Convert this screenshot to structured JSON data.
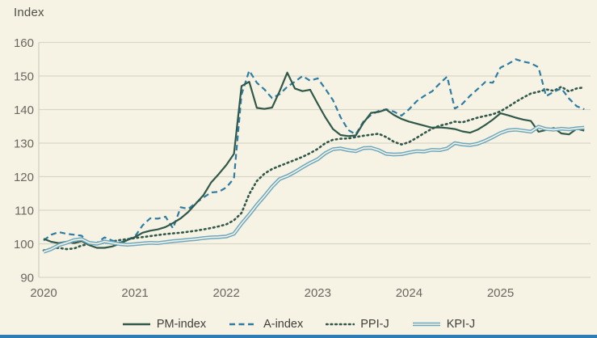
{
  "page": {
    "background": "#f6f3e5",
    "bottom_bar_color": "#2e7cb5",
    "grid_color": "#d9d6c7",
    "axis_color": "#cfccbd",
    "tick_text_color": "#6a675f",
    "label_text_color": "#504e47",
    "legend_text_color": "#3f3e39"
  },
  "chart": {
    "y_axis_title": "Index",
    "y_ticks": [
      90,
      100,
      110,
      120,
      130,
      140,
      150,
      160
    ],
    "x_ticks": [
      "2020",
      "2021",
      "2022",
      "2023",
      "2024",
      "2025"
    ]
  },
  "chart_data": {
    "type": "line",
    "title": "",
    "ylabel": "Index",
    "xlabel": "",
    "ylim": [
      90,
      160
    ],
    "x_range": [
      "2020-01",
      "2025-12"
    ],
    "x_unit": "month",
    "grid": "horizontal",
    "legend_position": "bottom",
    "series": [
      {
        "name": "PPI-J",
        "style": "dotted",
        "color": "#31584a",
        "values": [
          98.0,
          98.6,
          98.8,
          98.4,
          98.6,
          99.5,
          99.9,
          100.0,
          100.3,
          100.7,
          101.1,
          101.4,
          101.7,
          102.0,
          102.3,
          102.6,
          102.9,
          103.1,
          103.3,
          103.6,
          103.9,
          104.3,
          104.7,
          105.2,
          105.8,
          107.0,
          109.2,
          114.8,
          118.7,
          120.9,
          122.3,
          123.2,
          124.1,
          125.0,
          125.9,
          127.0,
          128.3,
          130.0,
          131.0,
          131.3,
          131.4,
          131.8,
          132.2,
          132.5,
          132.8,
          131.8,
          130.4,
          129.6,
          130.3,
          131.6,
          133.0,
          134.3,
          135.2,
          135.7,
          136.4,
          136.2,
          136.9,
          137.6,
          138.1,
          138.6,
          139.5,
          140.8,
          142.3,
          143.6,
          144.8,
          145.3,
          146.0,
          145.6,
          146.8,
          145.4,
          146.3,
          146.6
        ]
      },
      {
        "name": "A-index",
        "style": "dashed",
        "color": "#2e7ca3",
        "values": [
          101.0,
          102.7,
          103.5,
          103.0,
          102.7,
          102.4,
          100.0,
          100.3,
          101.9,
          101.0,
          100.3,
          101.3,
          102.2,
          105.5,
          107.6,
          107.5,
          108.1,
          104.6,
          110.9,
          110.4,
          112.2,
          113.8,
          115.3,
          115.5,
          116.8,
          119.5,
          144.5,
          151.6,
          148.0,
          146.0,
          143.4,
          144.6,
          146.8,
          148.3,
          150.0,
          148.6,
          149.3,
          146.2,
          142.8,
          137.7,
          133.9,
          132.6,
          136.4,
          138.4,
          139.6,
          140.1,
          139.4,
          138.2,
          140.1,
          142.5,
          144.1,
          145.4,
          147.7,
          149.8,
          140.3,
          141.7,
          144.1,
          146.1,
          148.2,
          148.0,
          152.5,
          153.6,
          155.0,
          154.3,
          153.8,
          152.6,
          144.0,
          145.3,
          146.3,
          143.3,
          141.0,
          140.1
        ]
      },
      {
        "name": "PM-index",
        "style": "solid",
        "color": "#30594a",
        "values": [
          101.5,
          100.6,
          100.2,
          100.6,
          100.2,
          100.8,
          99.6,
          98.8,
          98.8,
          99.2,
          100.0,
          101.1,
          102.0,
          103.3,
          103.9,
          104.3,
          105.0,
          106.2,
          107.6,
          109.5,
          112.0,
          114.5,
          118.3,
          120.8,
          123.5,
          126.8,
          147.0,
          148.3,
          140.5,
          140.2,
          140.6,
          145.5,
          151.0,
          146.3,
          145.5,
          145.9,
          141.7,
          137.7,
          134.2,
          132.4,
          132.1,
          132.3,
          136.0,
          139.0,
          139.3,
          140.0,
          138.4,
          137.2,
          136.4,
          135.8,
          135.2,
          134.6,
          134.7,
          134.5,
          134.2,
          133.5,
          133.1,
          134.0,
          135.4,
          137.0,
          138.9,
          138.3,
          137.6,
          137.0,
          136.6,
          133.4,
          133.9,
          134.5,
          132.9,
          132.6,
          134.3,
          133.7
        ]
      },
      {
        "name": "KPI-J",
        "style": "double",
        "color": "#6ea8bf",
        "values": [
          97.6,
          98.4,
          99.6,
          100.3,
          101.1,
          101.4,
          100.3,
          100.0,
          100.7,
          100.3,
          99.9,
          99.7,
          99.9,
          100.1,
          100.3,
          100.2,
          100.5,
          100.8,
          101.0,
          101.2,
          101.4,
          101.7,
          101.9,
          102.0,
          102.2,
          103.0,
          106.0,
          108.7,
          111.6,
          114.2,
          117.0,
          119.3,
          120.2,
          121.4,
          122.8,
          124.1,
          125.2,
          127.0,
          128.2,
          128.4,
          127.9,
          127.6,
          128.5,
          128.6,
          127.9,
          126.8,
          126.6,
          126.7,
          127.2,
          127.6,
          127.5,
          128.0,
          127.9,
          128.4,
          130.0,
          129.6,
          129.4,
          129.8,
          130.7,
          131.8,
          133.0,
          133.8,
          134.0,
          133.7,
          133.4,
          134.9,
          134.2,
          134.0,
          134.3,
          134.1,
          134.4,
          134.6
        ]
      }
    ],
    "legend_order": [
      "PM-index",
      "A-index",
      "PPI-J",
      "KPI-J"
    ]
  }
}
